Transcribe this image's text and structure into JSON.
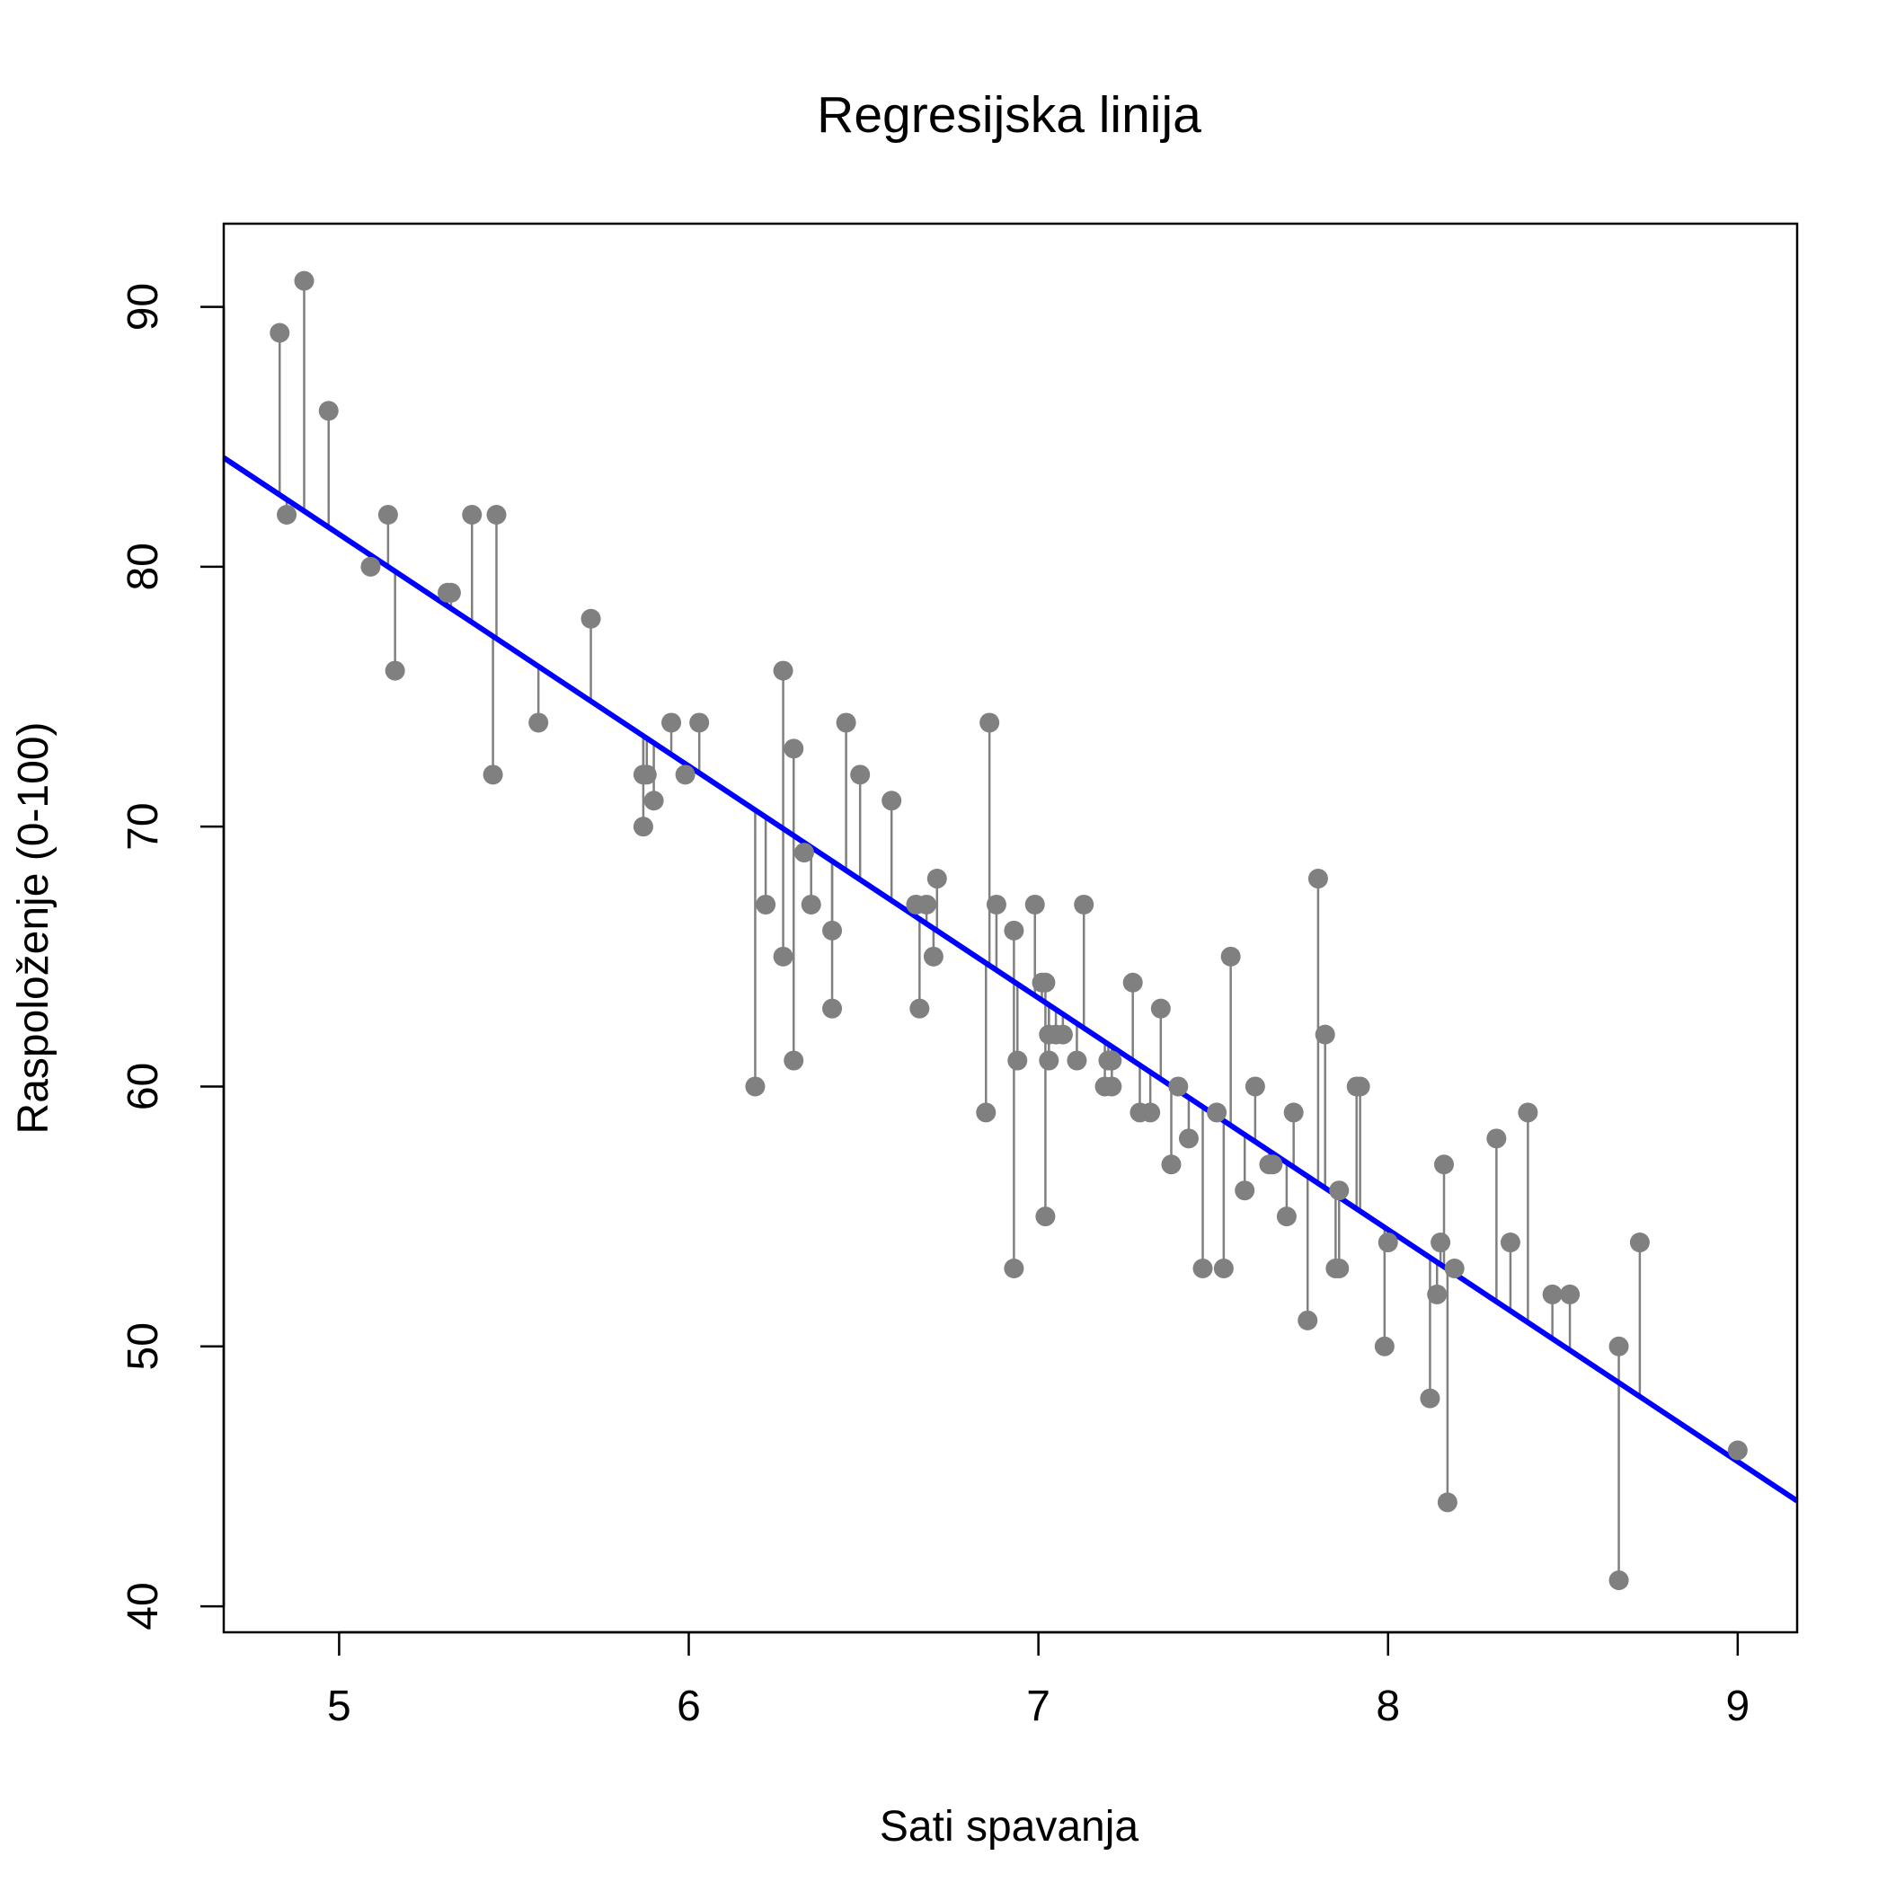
{
  "chart_data": {
    "type": "scatter",
    "title": "Regresijska linija",
    "xlabel": "Sati spavanja",
    "ylabel": "Raspoloženje (0-100)",
    "xlim": [
      4.67,
      9.17
    ],
    "ylim": [
      39.0,
      93.2
    ],
    "x_ticks": [
      5,
      6,
      7,
      8,
      9
    ],
    "x_tick_labels": [
      "5",
      "6",
      "7",
      "8",
      "9"
    ],
    "y_ticks": [
      40,
      50,
      60,
      70,
      80,
      90
    ],
    "y_tick_labels": [
      "40",
      "50",
      "60",
      "70",
      "80",
      "90"
    ],
    "grid": false,
    "colors": {
      "points": "#808080",
      "residuals": "#808080",
      "regression_line": "#0000ff",
      "frame": "#000000"
    },
    "regression_line": {
      "slope": -8.92,
      "intercept": 125.85
    },
    "residual_segments": true,
    "points": [
      [
        4.83,
        89
      ],
      [
        4.85,
        82
      ],
      [
        4.9,
        91
      ],
      [
        4.97,
        86
      ],
      [
        5.09,
        80
      ],
      [
        5.14,
        82
      ],
      [
        5.16,
        76
      ],
      [
        5.31,
        79
      ],
      [
        5.32,
        79
      ],
      [
        5.38,
        82
      ],
      [
        5.44,
        72
      ],
      [
        5.45,
        82
      ],
      [
        5.57,
        74
      ],
      [
        5.72,
        78
      ],
      [
        5.87,
        72
      ],
      [
        5.87,
        70
      ],
      [
        5.88,
        72
      ],
      [
        5.9,
        71
      ],
      [
        5.95,
        74
      ],
      [
        5.99,
        72
      ],
      [
        6.03,
        74
      ],
      [
        6.19,
        60
      ],
      [
        6.22,
        67
      ],
      [
        6.27,
        76
      ],
      [
        6.27,
        65
      ],
      [
        6.3,
        73
      ],
      [
        6.3,
        61
      ],
      [
        6.33,
        69
      ],
      [
        6.35,
        67
      ],
      [
        6.41,
        66
      ],
      [
        6.41,
        63
      ],
      [
        6.45,
        74
      ],
      [
        6.49,
        72
      ],
      [
        6.58,
        71
      ],
      [
        6.65,
        67
      ],
      [
        6.66,
        63
      ],
      [
        6.68,
        67
      ],
      [
        6.7,
        65
      ],
      [
        6.71,
        68
      ],
      [
        6.85,
        59
      ],
      [
        6.86,
        74
      ],
      [
        6.88,
        67
      ],
      [
        6.93,
        66
      ],
      [
        6.93,
        53
      ],
      [
        6.94,
        61
      ],
      [
        6.99,
        67
      ],
      [
        7.01,
        64
      ],
      [
        7.02,
        64
      ],
      [
        7.02,
        55
      ],
      [
        7.03,
        62
      ],
      [
        7.03,
        61
      ],
      [
        7.05,
        62
      ],
      [
        7.07,
        62
      ],
      [
        7.11,
        61
      ],
      [
        7.13,
        67
      ],
      [
        7.19,
        60
      ],
      [
        7.2,
        61
      ],
      [
        7.21,
        60
      ],
      [
        7.21,
        61
      ],
      [
        7.27,
        64
      ],
      [
        7.29,
        59
      ],
      [
        7.32,
        59
      ],
      [
        7.35,
        63
      ],
      [
        7.38,
        57
      ],
      [
        7.4,
        60
      ],
      [
        7.43,
        58
      ],
      [
        7.47,
        53
      ],
      [
        7.51,
        59
      ],
      [
        7.53,
        53
      ],
      [
        7.55,
        65
      ],
      [
        7.59,
        56
      ],
      [
        7.62,
        60
      ],
      [
        7.66,
        57
      ],
      [
        7.67,
        57
      ],
      [
        7.71,
        55
      ],
      [
        7.73,
        59
      ],
      [
        7.77,
        51
      ],
      [
        7.8,
        68
      ],
      [
        7.82,
        62
      ],
      [
        7.85,
        53
      ],
      [
        7.86,
        56
      ],
      [
        7.86,
        53
      ],
      [
        7.91,
        60
      ],
      [
        7.92,
        60
      ],
      [
        7.99,
        50
      ],
      [
        8.0,
        54
      ],
      [
        8.12,
        48
      ],
      [
        8.14,
        52
      ],
      [
        8.15,
        54
      ],
      [
        8.16,
        57
      ],
      [
        8.17,
        44
      ],
      [
        8.19,
        53
      ],
      [
        8.31,
        58
      ],
      [
        8.35,
        54
      ],
      [
        8.4,
        59
      ],
      [
        8.47,
        52
      ],
      [
        8.52,
        52
      ],
      [
        8.66,
        50
      ],
      [
        8.66,
        41
      ],
      [
        8.72,
        54
      ],
      [
        9.0,
        46
      ]
    ]
  }
}
